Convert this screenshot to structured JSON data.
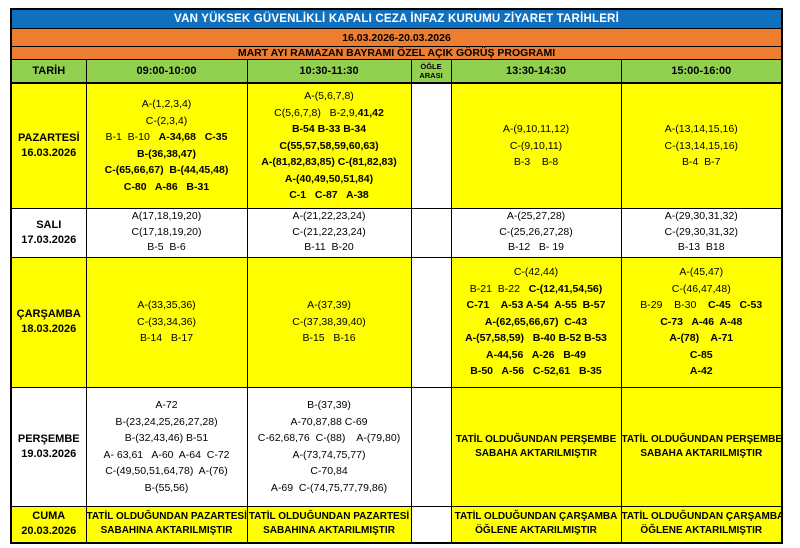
{
  "titles": {
    "main": "VAN YÜKSEK GÜVENLİKLİ KAPALI CEZA İNFAZ KURUMU ZİYARET TARİHLERİ",
    "date_range": "16.03.2026-20.03.2026",
    "program": "MART AYI RAMAZAN BAYRAMI ÖZEL AÇIK GÖRÜŞ PROGRAMI"
  },
  "columns": [
    "TARİH",
    "09:00-10:00",
    "10:30-11:30",
    "ÖĞLE ARASI",
    "13:30-14:30",
    "15:00-16:00"
  ],
  "colors": {
    "title_bg": "#1070C0",
    "banner_bg": "#ED7D31",
    "header_bg": "#92D050",
    "highlight_bg": "#FFFF00",
    "plain_bg": "#FFFFFF",
    "border": "#000000",
    "title_text": "#FFFFFF",
    "body_text": "#000000"
  },
  "rows": [
    {
      "day": "PAZARTESİ",
      "date": "16.03.2026",
      "day_bg": "yellow",
      "cells": [
        {
          "bg": "yellow",
          "type": "list",
          "lines": [
            [
              {
                "t": "A-(1,2,3,4)",
                "b": false
              }
            ],
            [
              {
                "t": "C-(2,3,4)",
                "b": false
              }
            ],
            [
              {
                "t": "B-1  B-10   ",
                "b": false
              },
              {
                "t": "A-34,68   C-35",
                "b": true
              }
            ],
            [
              {
                "t": "B-(36,38,47)",
                "b": true
              }
            ],
            [
              {
                "t": "C-(65,66,67)  B-(44,45,48)",
                "b": true
              }
            ],
            [
              {
                "t": "C-80   A-86   B-31",
                "b": true
              }
            ]
          ]
        },
        {
          "bg": "yellow",
          "type": "list",
          "lines": [
            [
              {
                "t": "A-(5,6,7,8)",
                "b": false
              }
            ],
            [
              {
                "t": "C(5,6,7,8)   B-2,9,",
                "b": false
              },
              {
                "t": "41,42",
                "b": true
              }
            ],
            [
              {
                "t": "B-54 B-33 B-34",
                "b": true
              }
            ],
            [
              {
                "t": "C(55,57,58,59,60,63)",
                "b": true
              }
            ],
            [
              {
                "t": "A-(81,82,83,85) C-(81,82,83)",
                "b": true
              }
            ],
            [
              {
                "t": "A-(40,49,50,51,84)",
                "b": true
              }
            ],
            [
              {
                "t": "C-1   C-87   A-38",
                "b": true
              }
            ]
          ]
        },
        {
          "bg": "yellow",
          "type": "list",
          "lines": [
            [
              {
                "t": "A-(9,10,11,12)",
                "b": false
              }
            ],
            [
              {
                "t": "C-(9,10,11)",
                "b": false
              }
            ],
            [
              {
                "t": "B-3    B-8",
                "b": false
              }
            ]
          ]
        },
        {
          "bg": "yellow",
          "type": "list",
          "lines": [
            [
              {
                "t": "A-(13,14,15,16)",
                "b": false
              }
            ],
            [
              {
                "t": "C-(13,14,15,16)",
                "b": false
              }
            ],
            [
              {
                "t": "B-4  B-7",
                "b": false
              }
            ]
          ]
        }
      ]
    },
    {
      "day": "SALI",
      "date": "17.03.2026",
      "day_bg": "white",
      "cells": [
        {
          "bg": "white",
          "type": "list",
          "lines": [
            [
              {
                "t": "A(17,18,19,20)",
                "b": false
              }
            ],
            [
              {
                "t": "C(17,18,19,20)",
                "b": false
              }
            ],
            [
              {
                "t": "B-5  B-6",
                "b": false
              }
            ]
          ]
        },
        {
          "bg": "white",
          "type": "list",
          "lines": [
            [
              {
                "t": "A-(21,22,23,24)",
                "b": false
              }
            ],
            [
              {
                "t": "C-(21,22,23,24)",
                "b": false
              }
            ],
            [
              {
                "t": "B-11  B-20",
                "b": false
              }
            ]
          ]
        },
        {
          "bg": "white",
          "type": "list",
          "lines": [
            [
              {
                "t": "A-(25,27,28)",
                "b": false
              }
            ],
            [
              {
                "t": "C-(25,26,27,28)",
                "b": false
              }
            ],
            [
              {
                "t": "B-12   B- 19",
                "b": false
              }
            ]
          ]
        },
        {
          "bg": "white",
          "type": "list",
          "lines": [
            [
              {
                "t": "A-(29,30,31,32)",
                "b": false
              }
            ],
            [
              {
                "t": "C-(29,30,31,32)",
                "b": false
              }
            ],
            [
              {
                "t": "B-13  B18",
                "b": false
              }
            ]
          ]
        }
      ]
    },
    {
      "day": "ÇARŞAMBA",
      "date": "18.03.2026",
      "day_bg": "yellow",
      "cells": [
        {
          "bg": "yellow",
          "type": "list",
          "lines": [
            [
              {
                "t": "A-(33,35,36)",
                "b": false
              }
            ],
            [
              {
                "t": "C-(33,34,36)",
                "b": false
              }
            ],
            [
              {
                "t": "B-14   B-17",
                "b": false
              }
            ]
          ]
        },
        {
          "bg": "yellow",
          "type": "list",
          "lines": [
            [
              {
                "t": "A-(37,39)",
                "b": false
              }
            ],
            [
              {
                "t": "C-(37,38,39,40)",
                "b": false
              }
            ],
            [
              {
                "t": "B-15   B-16",
                "b": false
              }
            ]
          ]
        },
        {
          "bg": "yellow",
          "type": "list",
          "lines": [
            [
              {
                "t": "C-(42,44)",
                "b": false
              }
            ],
            [
              {
                "t": "B-21  B-22   ",
                "b": false
              },
              {
                "t": "C-(12,41,54,56)",
                "b": true
              }
            ],
            [
              {
                "t": "C-71    A-53 A-54  A-55  B-57",
                "b": true
              }
            ],
            [
              {
                "t": "A-(62,65,66,67)  C-43",
                "b": true
              }
            ],
            [
              {
                "t": "A-(57,58,59)   B-40 B-52 B-53",
                "b": true
              }
            ],
            [
              {
                "t": "A-44,56   A-26   B-49",
                "b": true
              }
            ],
            [
              {
                "t": "B-50   A-56   C-52,61   B-35",
                "b": true
              }
            ]
          ]
        },
        {
          "bg": "yellow",
          "type": "list",
          "lines": [
            [
              {
                "t": "A-(45,47)",
                "b": false
              }
            ],
            [
              {
                "t": "C-(46,47,48)",
                "b": false
              }
            ],
            [
              {
                "t": "B-29    B-30    ",
                "b": false
              },
              {
                "t": "C-45   C-53",
                "b": true
              }
            ],
            [
              {
                "t": "C-73   A-46  A-48",
                "b": true
              }
            ],
            [
              {
                "t": "A-(78)    A-71",
                "b": true
              }
            ],
            [
              {
                "t": "C-85",
                "b": true
              }
            ],
            [
              {
                "t": "A-42",
                "b": true
              }
            ]
          ]
        }
      ]
    },
    {
      "day": "PERŞEMBE",
      "date": "19.03.2026",
      "day_bg": "white",
      "cells": [
        {
          "bg": "white",
          "type": "list",
          "lines": [
            [
              {
                "t": "A-72",
                "b": false
              }
            ],
            [
              {
                "t": "B-(23,24,25,26,27,28)",
                "b": false
              }
            ],
            [
              {
                "t": "B-(32,43,46) B-51",
                "b": false
              }
            ],
            [
              {
                "t": "A- 63,61   A-60  A-64  C-72",
                "b": false
              }
            ],
            [
              {
                "t": "C-(49,50,51,64,78)  A-(76)",
                "b": false
              }
            ],
            [
              {
                "t": "B-(55,56)",
                "b": false
              }
            ]
          ]
        },
        {
          "bg": "white",
          "type": "list",
          "lines": [
            [
              {
                "t": "B-(37,39)",
                "b": false
              }
            ],
            [
              {
                "t": "A-70,87,88 C-69",
                "b": false
              }
            ],
            [
              {
                "t": "C-62,68,76  C-(88)    A-(79,80)",
                "b": false
              }
            ],
            [
              {
                "t": "A-(73,74,75,77)",
                "b": false
              }
            ],
            [
              {
                "t": "C-70,84",
                "b": false
              }
            ],
            [
              {
                "t": "A-69  C-(74,75,77,79,86)",
                "b": false
              }
            ]
          ]
        },
        {
          "bg": "yellow",
          "type": "notice",
          "lines": [
            [
              {
                "t": "TATİL OLDUĞUNDAN PERŞEMBE",
                "b": true
              }
            ],
            [
              {
                "t": "SABAHA AKTARILMIŞTIR",
                "b": true
              }
            ]
          ]
        },
        {
          "bg": "yellow",
          "type": "notice",
          "lines": [
            [
              {
                "t": "TATİL OLDUĞUNDAN PERŞEMBE",
                "b": true
              }
            ],
            [
              {
                "t": "SABAHA AKTARILMIŞTIR",
                "b": true
              }
            ]
          ]
        }
      ]
    },
    {
      "day": "CUMA",
      "date": "20.03.2026",
      "day_bg": "yellow",
      "cells": [
        {
          "bg": "yellow",
          "type": "notice",
          "lines": [
            [
              {
                "t": "TATİL OLDUĞUNDAN PAZARTESİ",
                "b": true
              }
            ],
            [
              {
                "t": "SABAHINA AKTARILMIŞTIR",
                "b": true
              }
            ]
          ]
        },
        {
          "bg": "yellow",
          "type": "notice",
          "lines": [
            [
              {
                "t": "TATİL OLDUĞUNDAN PAZARTESİ",
                "b": true
              }
            ],
            [
              {
                "t": "SABAHINA AKTARILMIŞTIR",
                "b": true
              }
            ]
          ]
        },
        {
          "bg": "yellow",
          "type": "notice",
          "lines": [
            [
              {
                "t": "TATİL OLDUĞUNDAN ÇARŞAMBA",
                "b": true
              }
            ],
            [
              {
                "t": "ÖĞLENE AKTARILMIŞTIR",
                "b": true
              }
            ]
          ]
        },
        {
          "bg": "yellow",
          "type": "notice",
          "lines": [
            [
              {
                "t": "TATİL OLDUĞUNDAN ÇARŞAMBA",
                "b": true
              }
            ],
            [
              {
                "t": "ÖĞLENE AKTARILMIŞTIR",
                "b": true
              }
            ]
          ]
        }
      ]
    }
  ]
}
